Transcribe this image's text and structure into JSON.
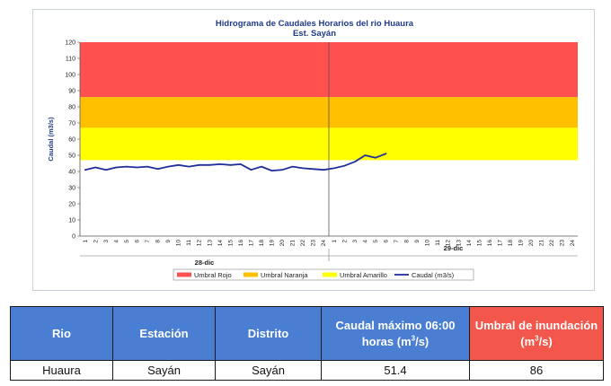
{
  "chart_data": {
    "type": "line",
    "title": "Hidrograma de Caudales Horarios del rio Huaura",
    "subtitle": "Est. Sayán",
    "ylabel": "Caudal  (m3/s)",
    "ylim": [
      0,
      120
    ],
    "yticks": [
      0,
      10,
      20,
      30,
      40,
      50,
      60,
      70,
      80,
      90,
      100,
      110,
      120
    ],
    "x_hour_labels": [
      "1",
      "2",
      "3",
      "4",
      "5",
      "6",
      "7",
      "8",
      "9",
      "10",
      "11",
      "12",
      "13",
      "14",
      "15",
      "16",
      "17",
      "18",
      "19",
      "20",
      "21",
      "22",
      "23",
      "24",
      "1",
      "2",
      "3",
      "4",
      "5",
      "6",
      "7",
      "8",
      "9",
      "10",
      "11",
      "12",
      "13",
      "14",
      "15",
      "16",
      "17",
      "18",
      "19",
      "20",
      "21",
      "22",
      "23",
      "24"
    ],
    "days": [
      "28-dic",
      "29-dic"
    ],
    "bands": [
      {
        "name": "Umbral Rojo",
        "from": 86,
        "to": 120,
        "color": "#ff5050"
      },
      {
        "name": "Umbral Naranja",
        "from": 67,
        "to": 86,
        "color": "#ffc000"
      },
      {
        "name": "Umbral Amarillo",
        "from": 47,
        "to": 67,
        "color": "#ffff00"
      }
    ],
    "series": [
      {
        "name": "Caudal (m3/s)",
        "color": "#1f2f9a",
        "x": [
          1,
          2,
          3,
          4,
          5,
          6,
          7,
          8,
          9,
          10,
          11,
          12,
          13,
          14,
          15,
          16,
          17,
          18,
          19,
          20,
          21,
          22,
          23,
          24,
          25,
          26,
          27,
          28,
          29,
          30
        ],
        "values": [
          41,
          42.5,
          41,
          42.5,
          43,
          42.5,
          43,
          41.5,
          43,
          44,
          43,
          44,
          44,
          44.5,
          44,
          44.5,
          41,
          43,
          40.5,
          41,
          43,
          42,
          41.5,
          41,
          42,
          43.5,
          46,
          50,
          48.5,
          51
        ]
      }
    ],
    "legend_position": "bottom",
    "grid": false
  },
  "table": {
    "headers": [
      "Rio",
      "Estación",
      "Distrito",
      "Caudal máximo 06:00 horas (m",
      "Umbral de inundación (m"
    ],
    "unit_sup": "3",
    "unit_close": "/s)",
    "row": [
      "Huaura",
      "Sayán",
      "Sayán",
      "51.4",
      "86"
    ]
  }
}
